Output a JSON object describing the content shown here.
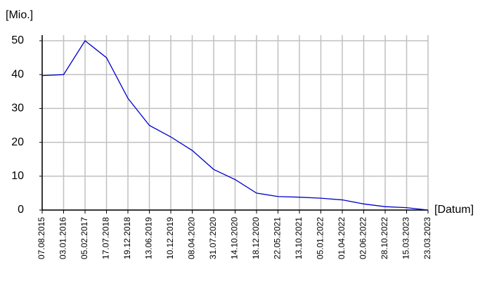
{
  "chart_data": {
    "type": "line",
    "y_label": "[Mio.]",
    "x_label": "[Datum]",
    "categories": [
      "07.08.2015",
      "03.01.2016",
      "05.02.2017",
      "17.07.2018",
      "19.12.2018",
      "13.06.2019",
      "10.12.2019",
      "08.04.2020",
      "31.07.2020",
      "14.10.2020",
      "18.12.2020",
      "22.05.2021",
      "13.10.2021",
      "05.01.2022",
      "01.04.2022",
      "02.06.2022",
      "28.10.2022",
      "15.03.2023",
      "23.03.2023"
    ],
    "series": [
      {
        "color": "#0000cc",
        "values": [
          39.7,
          40,
          50,
          45,
          33,
          25,
          21.6,
          17.6,
          12,
          9,
          5,
          4,
          3.8,
          3.5,
          3,
          1.8,
          1,
          0.7,
          0
        ]
      }
    ],
    "ylim": [
      0,
      50
    ],
    "yticks": [
      0,
      10,
      20,
      30,
      40,
      50
    ],
    "grid": true
  }
}
